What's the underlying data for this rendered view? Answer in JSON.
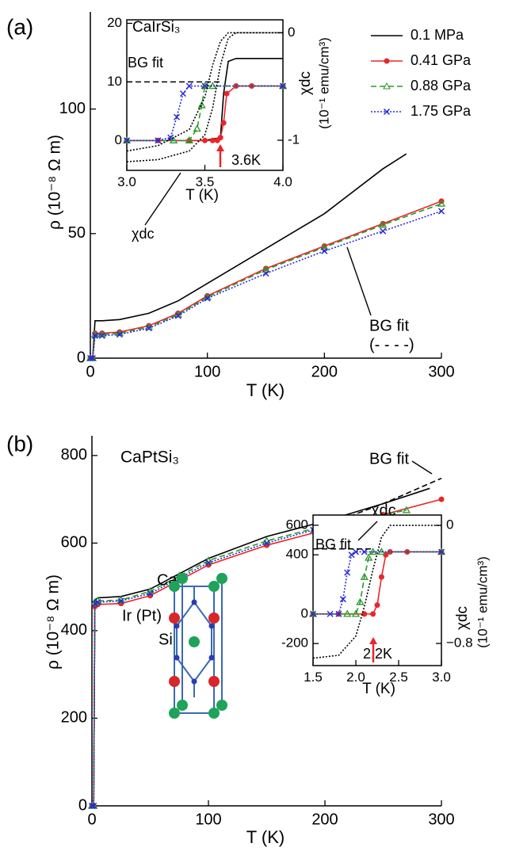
{
  "chart_data": [
    {
      "type": "line",
      "panel": "(a)",
      "xlabel": "T (K)",
      "ylabel": "ρ (10⁻⁸ Ω m)",
      "xlim": [
        0,
        300
      ],
      "ylim": [
        0,
        139
      ],
      "xticks": [
        0,
        100,
        200,
        300
      ],
      "yticks": [
        0,
        50,
        100
      ],
      "legend": "upper right",
      "series": [
        {
          "name": "0.1 MPa",
          "color": "#000000",
          "line_style": "solid",
          "marker": "none",
          "x": [
            0,
            2,
            4,
            10,
            25,
            50,
            75,
            100,
            150,
            200,
            250,
            270
          ],
          "values": [
            0,
            0,
            15,
            15,
            15.5,
            18,
            23,
            30,
            44,
            58,
            76,
            82
          ]
        },
        {
          "name": "0.41 GPa",
          "color": "#e8262a",
          "line_style": "solid",
          "marker": "circle",
          "x": [
            0,
            2,
            4,
            10,
            25,
            50,
            75,
            100,
            150,
            200,
            250,
            300
          ],
          "values": [
            0,
            0,
            10,
            10,
            10.5,
            13,
            18,
            25,
            36,
            45,
            54,
            63
          ]
        },
        {
          "name": "0.88 GPa",
          "color": "#2a9a2a",
          "line_style": "dashed",
          "marker": "triangle",
          "x": [
            0,
            2,
            4,
            10,
            25,
            50,
            75,
            100,
            150,
            200,
            250,
            300
          ],
          "values": [
            0,
            0,
            9.5,
            9.5,
            10,
            12.5,
            17.5,
            24.5,
            35.5,
            44.5,
            53.5,
            62
          ]
        },
        {
          "name": "1.75 GPa",
          "color": "#2a2ad8",
          "line_style": "dotted",
          "marker": "x",
          "x": [
            0,
            2,
            4,
            10,
            25,
            50,
            75,
            100,
            150,
            200,
            250,
            300
          ],
          "values": [
            0,
            0,
            9,
            9,
            9.5,
            12,
            17,
            24,
            34,
            43,
            51,
            59
          ]
        }
      ],
      "annotations": [
        {
          "text": "BG fit"
        },
        {
          "text": "(- - - -)"
        }
      ]
    },
    {
      "type": "line",
      "title": "CaIrSi₃",
      "xlabel": "T (K)",
      "y2label": "χdc",
      "y2unit": "(10⁻¹ emu/cm³)",
      "xlim": [
        3.0,
        4.0
      ],
      "ylim": [
        -5.1,
        20.6
      ],
      "y2lim": [
        -1.28,
        0.12
      ],
      "xticks": [
        {
          "value": 3,
          "label": "3.0"
        },
        {
          "value": 3.5,
          "label": "3.5"
        },
        {
          "value": 4,
          "label": "4.0"
        }
      ],
      "yticks": [
        0,
        10,
        20
      ],
      "y2ticks": [
        0,
        -1
      ],
      "series": [
        {
          "color": "#000000",
          "line_style": "solid",
          "marker": "none",
          "x": [
            3.0,
            3.5,
            3.6,
            3.62,
            3.65,
            3.7,
            4.0
          ],
          "values": [
            0,
            0,
            0.5,
            8,
            13.5,
            14,
            14
          ]
        },
        {
          "color": "#e8262a",
          "line_style": "solid",
          "marker": "circle",
          "x": [
            3.0,
            3.2,
            3.4,
            3.5,
            3.55,
            3.58,
            3.6,
            3.62,
            3.64,
            3.7,
            3.8,
            4.0
          ],
          "values": [
            0,
            0,
            0,
            0,
            0,
            0,
            0.5,
            3,
            8,
            9.3,
            9.3,
            9.3
          ]
        },
        {
          "color": "#2a9a2a",
          "line_style": "dashed",
          "marker": "triangle",
          "x": [
            3.0,
            3.3,
            3.4,
            3.45,
            3.48,
            3.5,
            3.55,
            4.0
          ],
          "values": [
            0,
            0,
            0,
            2,
            6,
            9.3,
            9.3,
            9.3
          ]
        },
        {
          "color": "#2a2ad8",
          "line_style": "dotted",
          "marker": "x",
          "x": [
            3.0,
            3.2,
            3.28,
            3.32,
            3.36,
            3.4,
            3.5,
            4.0
          ],
          "values": [
            0,
            0,
            0.5,
            4,
            8,
            9.3,
            9.3,
            9.3
          ]
        },
        {
          "color": "#000000",
          "line_style": "dashed",
          "marker": "none",
          "x": [
            3.0,
            3.6
          ],
          "values": [
            10,
            10
          ]
        },
        {
          "color": "#000000",
          "line_style": "dotted",
          "marker": "none",
          "axis": "y2",
          "x": [
            3.0,
            3.2,
            3.4,
            3.5,
            3.55,
            3.6,
            3.65,
            3.7,
            4.0
          ],
          "values": [
            -1.2,
            -1.18,
            -1.1,
            -0.95,
            -0.7,
            -0.3,
            -0.05,
            0,
            0
          ]
        },
        {
          "color": "#000000",
          "line_style": "dotted",
          "marker": "none",
          "axis": "y2",
          "x": [
            3.0,
            3.2,
            3.4,
            3.5,
            3.55,
            3.6,
            3.65,
            3.7,
            4.0
          ],
          "values": [
            -1.1,
            -1.05,
            -0.9,
            -0.6,
            -0.3,
            -0.08,
            0,
            0,
            0
          ]
        }
      ],
      "annotations": [
        {
          "text": "BG fit"
        },
        {
          "text": "3.6K",
          "color": "#e8262a"
        },
        {
          "text": "χdc"
        }
      ]
    },
    {
      "type": "line",
      "panel": "(b)",
      "title": "CaPtSi₃",
      "xlabel": "T (K)",
      "ylabel": "ρ (10⁻⁸ Ω m)",
      "xlim": [
        0,
        300
      ],
      "ylim": [
        0,
        845
      ],
      "xticks": [
        0,
        100,
        200,
        300
      ],
      "yticks": [
        0,
        200,
        400,
        600,
        800
      ],
      "series": [
        {
          "color": "#000000",
          "line_style": "solid",
          "marker": "none",
          "x": [
            0,
            1.5,
            2.5,
            5,
            25,
            50,
            75,
            100,
            150,
            200,
            250,
            290
          ],
          "values": [
            0,
            0,
            470,
            475,
            478,
            495,
            530,
            565,
            615,
            650,
            690,
            725
          ]
        },
        {
          "color": "#e8262a",
          "line_style": "solid",
          "marker": "circle",
          "x": [
            0,
            1.5,
            2.5,
            5,
            25,
            50,
            75,
            100,
            150,
            200,
            250,
            300
          ],
          "values": [
            0,
            0,
            455,
            460,
            462,
            480,
            515,
            550,
            595,
            630,
            665,
            700
          ]
        },
        {
          "color": "#2a9a2a",
          "line_style": "dashed",
          "marker": "triangle",
          "x": [
            0,
            1.5,
            2.5,
            5,
            25,
            50,
            75,
            100,
            150,
            200,
            270
          ],
          "values": [
            0,
            0,
            465,
            468,
            470,
            490,
            525,
            560,
            605,
            640,
            675
          ]
        },
        {
          "color": "#2a2ad8",
          "line_style": "dotted",
          "marker": "x",
          "x": [
            0,
            1.5,
            2.5,
            5,
            25,
            50,
            75,
            100,
            150,
            190
          ],
          "values": [
            0,
            0,
            462,
            465,
            468,
            485,
            520,
            555,
            600,
            630
          ]
        },
        {
          "color": "#000000",
          "line_style": "dashed",
          "marker": "none",
          "x": [
            200,
            250,
            300
          ],
          "values": [
            640,
            690,
            748
          ]
        }
      ],
      "annotations": [
        {
          "text": "BG fit"
        },
        {
          "text": "χdc"
        },
        {
          "text": "Ca",
          "color": "#1fa35a"
        },
        {
          "text": "Ir (Pt)",
          "color": "#d8262a"
        },
        {
          "text": "Si",
          "color": "#2a3ab8"
        }
      ]
    },
    {
      "type": "line",
      "xlabel": "T (K)",
      "y2label": "χdc",
      "y2unit": "(10⁻¹ emu/cm³)",
      "xlim": [
        1.5,
        3.0
      ],
      "ylim": [
        -349,
        669
      ],
      "y2lim": [
        -0.95,
        0.07
      ],
      "xticks": [
        1.5,
        {
          "value": 2,
          "label": "2.0"
        },
        2.5,
        {
          "value": 3,
          "label": "3.0"
        }
      ],
      "yticks": [
        -200,
        0,
        400,
        600
      ],
      "y2ticks": [
        0,
        {
          "value": -0.8,
          "label": "−0.8"
        }
      ],
      "series": [
        {
          "color": "#e8262a",
          "line_style": "solid",
          "marker": "circle",
          "x": [
            1.5,
            1.8,
            2.1,
            2.2,
            2.25,
            2.3,
            2.35,
            2.4,
            2.6,
            3.0
          ],
          "values": [
            0,
            0,
            0,
            0,
            60,
            250,
            400,
            420,
            420,
            420
          ]
        },
        {
          "color": "#2a9a2a",
          "line_style": "dashed",
          "marker": "triangle",
          "x": [
            1.5,
            1.9,
            2.0,
            2.05,
            2.1,
            2.15,
            2.2,
            2.3,
            3.0
          ],
          "values": [
            0,
            0,
            0,
            80,
            250,
            380,
            420,
            420,
            420
          ]
        },
        {
          "color": "#2a2ad8",
          "line_style": "dotted",
          "marker": "x",
          "x": [
            1.5,
            1.7,
            1.8,
            1.85,
            1.9,
            1.95,
            2.0,
            2.1,
            3.0
          ],
          "values": [
            0,
            0,
            0,
            100,
            280,
            400,
            420,
            420,
            420
          ]
        },
        {
          "color": "#000000",
          "line_style": "dashed",
          "marker": "none",
          "x": [
            1.5,
            2.2
          ],
          "values": [
            440,
            440
          ]
        },
        {
          "color": "#000000",
          "line_style": "dotted",
          "marker": "none",
          "axis": "y2",
          "x": [
            1.5,
            1.8,
            2.0,
            2.1,
            2.2,
            2.3,
            2.4,
            2.5,
            3.0
          ],
          "values": [
            -0.9,
            -0.88,
            -0.75,
            -0.55,
            -0.3,
            -0.08,
            0,
            0,
            0
          ]
        }
      ],
      "annotations": [
        {
          "text": "BG fit"
        },
        {
          "text": "2.2K",
          "color": "#e8262a"
        }
      ]
    }
  ]
}
